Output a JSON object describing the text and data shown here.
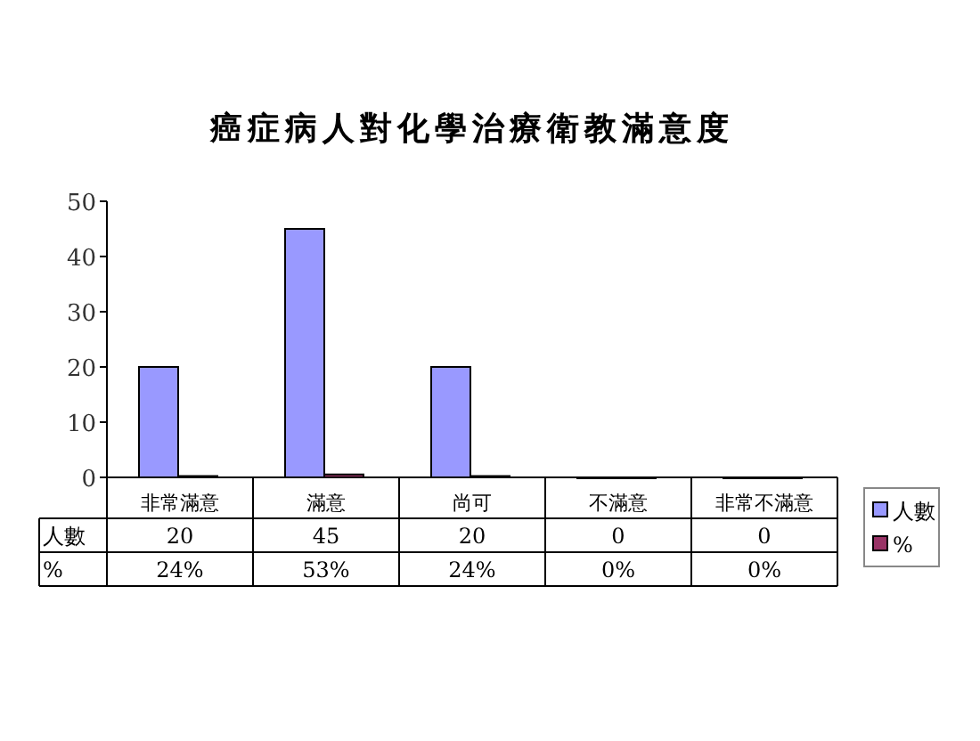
{
  "chart_data": {
    "type": "bar",
    "title": "癌症病人對化學治療衛教滿意度",
    "categories": [
      "非常滿意",
      "滿意",
      "尚可",
      "不滿意",
      "非常不滿意"
    ],
    "series": [
      {
        "name": "人數",
        "color": "#9999ff",
        "values": [
          20,
          45,
          20,
          0,
          0
        ],
        "value_labels": [
          "20",
          "45",
          "20",
          "0",
          "0"
        ]
      },
      {
        "name": "%",
        "color": "#993366",
        "values": [
          0.24,
          0.53,
          0.24,
          0,
          0
        ],
        "value_labels": [
          "24%",
          "53%",
          "24%",
          "0%",
          "0%"
        ]
      }
    ],
    "ylim": [
      0,
      50
    ],
    "yticks": [
      0,
      10,
      20,
      30,
      40,
      50
    ],
    "grid": false,
    "legend": "right"
  }
}
